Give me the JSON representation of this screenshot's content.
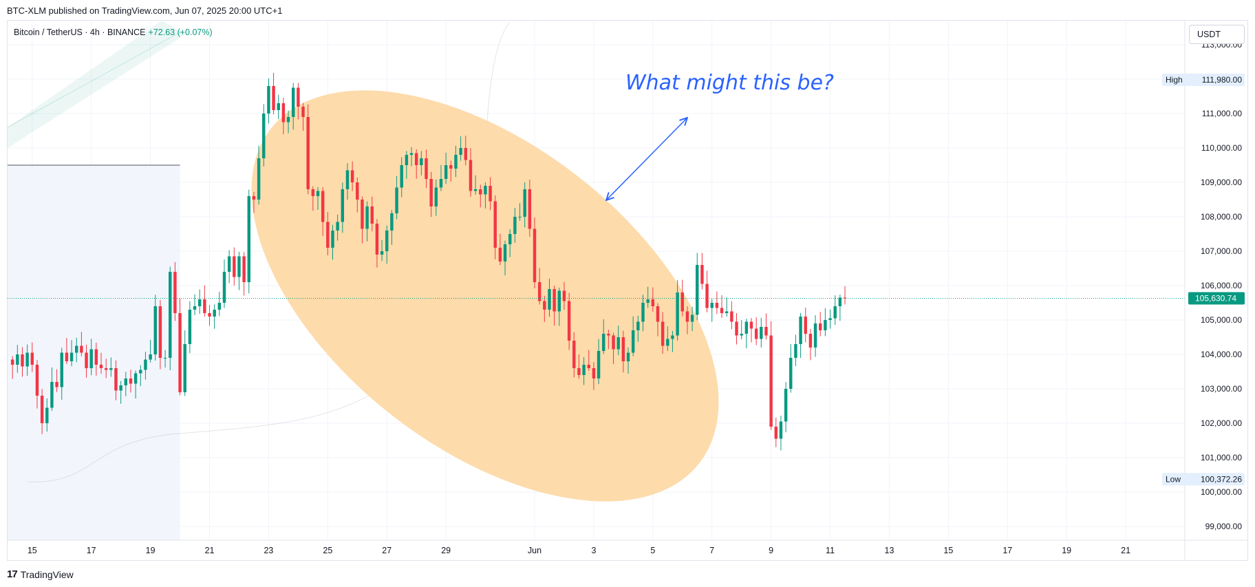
{
  "header": {
    "publish_line": "BTC-XLM published on TradingView.com, Jun 07, 2025 20:00 UTC+1"
  },
  "legend": {
    "symbol": "Bitcoin / TetherUS · 4h · BINANCE",
    "change": "+72.63 (+0.07%)"
  },
  "currency_button": {
    "label": "USDT"
  },
  "footer": {
    "logo_mark": "17",
    "brand": "TradingView"
  },
  "colors": {
    "up": "#089981",
    "down": "#f23645",
    "annotation": "#2962ff",
    "highlight": "#fdd9a6",
    "shaded_range": "#f0f3fa"
  },
  "chart_data": {
    "type": "candlestick",
    "symbol": "Bitcoin / TetherUS",
    "interval": "4h",
    "exchange": "BINANCE",
    "ylim": [
      98600,
      113700
    ],
    "y_ticks": [
      "113,000.00",
      "112,000.00",
      "111,000.00",
      "110,000.00",
      "109,000.00",
      "108,000.00",
      "107,000.00",
      "106,000.00",
      "105,000.00",
      "104,000.00",
      "103,000.00",
      "102,000.00",
      "101,000.00",
      "100,000.00",
      "99,000.00"
    ],
    "y_tick_values": [
      113000,
      112000,
      111000,
      110000,
      109000,
      108000,
      107000,
      106000,
      105000,
      104000,
      103000,
      102000,
      101000,
      100000,
      99000
    ],
    "x_ticks": [
      "15",
      "17",
      "19",
      "21",
      "23",
      "25",
      "27",
      "29",
      "Jun",
      "3",
      "5",
      "7",
      "9",
      "11",
      "13",
      "15",
      "17",
      "19",
      "21"
    ],
    "x_tick_dates": [
      "2025-05-15",
      "2025-05-17",
      "2025-05-19",
      "2025-05-21",
      "2025-05-23",
      "2025-05-25",
      "2025-05-27",
      "2025-05-29",
      "2025-06-01",
      "2025-06-03",
      "2025-06-05",
      "2025-06-07",
      "2025-06-09",
      "2025-06-11",
      "2025-06-13",
      "2025-06-15",
      "2025-06-17",
      "2025-06-19",
      "2025-06-21"
    ],
    "x_start": "2025-05-14T04:00",
    "x_end": "2025-06-23T00:00",
    "high": {
      "label": "High",
      "value": "111,980.00",
      "price": 111980
    },
    "low": {
      "label": "Low",
      "value": "100,372.26",
      "price": 100372
    },
    "last_price": {
      "value": "105,630.74",
      "price": 105630
    },
    "annotation": {
      "text": "What might this be?"
    },
    "candles_start": "2025-05-14T00:00",
    "candle_hours": 4,
    "closes": [
      104150,
      103850,
      103700,
      104000,
      103650,
      104050,
      103700,
      102800,
      102000,
      102450,
      103200,
      103050,
      104050,
      103800,
      104050,
      104250,
      104050,
      103600,
      104150,
      103700,
      103600,
      103550,
      103600,
      102950,
      103100,
      103300,
      103150,
      103450,
      103550,
      103850,
      104000,
      105400,
      103900,
      103900,
      106400,
      105200,
      102900,
      104300,
      105300,
      105400,
      105600,
      105200,
      105100,
      105300,
      105500,
      106400,
      106850,
      106250,
      106850,
      106100,
      108600,
      108500,
      109700,
      111000,
      111800,
      111100,
      111300,
      110750,
      110900,
      111750,
      111200,
      110900,
      108800,
      108600,
      108750,
      107850,
      107100,
      107600,
      107850,
      108800,
      109350,
      109000,
      108500,
      107650,
      108300,
      107800,
      106900,
      107000,
      107600,
      108100,
      108850,
      109500,
      109800,
      109850,
      109500,
      109700,
      109100,
      108300,
      108850,
      109100,
      109500,
      109400,
      109800,
      110000,
      109650,
      108750,
      108800,
      108650,
      108900,
      108450,
      107100,
      106700,
      107200,
      107500,
      108000,
      108000,
      108800,
      107650,
      106100,
      105550,
      105300,
      105900,
      105250,
      105850,
      105550,
      104400,
      103600,
      103400,
      103700,
      103600,
      103300,
      104100,
      104600,
      104550,
      104150,
      104500,
      103800,
      104050,
      104700,
      104950,
      105500,
      105600,
      105400,
      104950,
      104250,
      104450,
      104550,
      105800,
      105250,
      104950,
      105150,
      106600,
      106050,
      105350,
      105500,
      105350,
      105200,
      105250,
      104950,
      104550,
      104600,
      104950,
      104750,
      104450,
      104800,
      104550,
      101900,
      101550,
      102050,
      103000,
      103900,
      104300,
      105100,
      104600,
      104200,
      104900,
      104700,
      105000,
      105050,
      105400,
      105650,
      105630
    ],
    "shaded_range": {
      "from": "2025-05-14T04:00",
      "to": "2025-05-20T00:00",
      "level": 109500
    }
  }
}
